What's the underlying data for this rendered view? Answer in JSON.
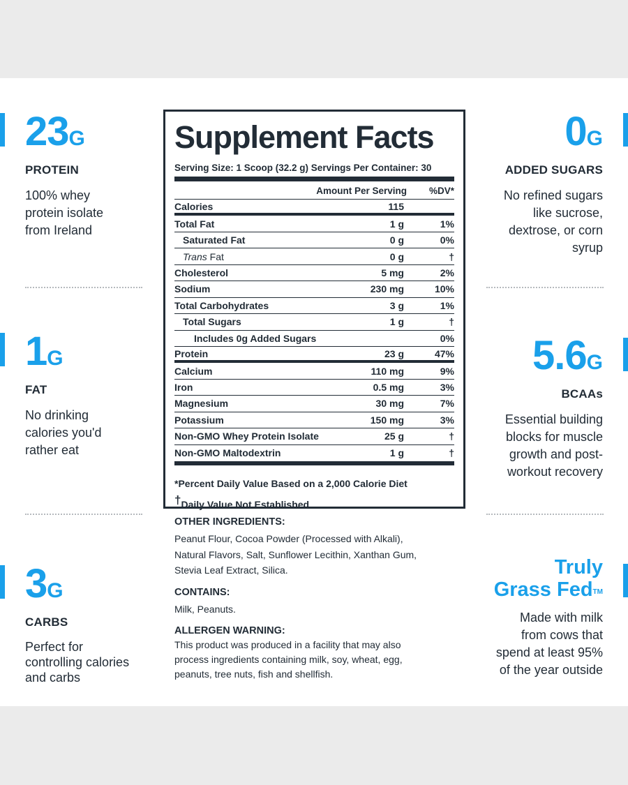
{
  "left_stats": [
    {
      "value": "23",
      "unit": "G",
      "label": "PROTEIN",
      "desc": [
        "100% whey",
        "protein isolate",
        "from Ireland"
      ]
    },
    {
      "value": "1",
      "unit": "G",
      "label": "FAT",
      "desc": [
        "No drinking",
        "calories you'd",
        "rather eat"
      ]
    },
    {
      "value": "3",
      "unit": "G",
      "label": "CARBS",
      "desc": [
        "Perfect for",
        "controlling calories",
        "and carbs"
      ]
    }
  ],
  "right_stats": [
    {
      "value": "0",
      "unit": "G",
      "label": "ADDED SUGARS",
      "desc": [
        "No refined sugars",
        "like sucrose,",
        "dextrose, or corn",
        "syrup"
      ]
    },
    {
      "value": "5.6",
      "unit": "G",
      "label": "BCAAs",
      "desc": [
        "Essential building",
        "blocks for muscle",
        "growth and post-",
        "workout recovery"
      ]
    },
    {
      "title_line1": "Truly",
      "title_line2": "Grass Fed",
      "tm": "TM",
      "desc": [
        "Made with milk",
        "from cows that",
        "spend at least 95%",
        "of the year outside"
      ]
    }
  ],
  "facts": {
    "title": "Supplement Facts",
    "serving": "Serving Size: 1 Scoop (32.2 g)  Servings Per Container: 30",
    "col_amount": "Amount Per Serving",
    "col_dv": "%DV*",
    "rows": [
      {
        "name": "Calories",
        "amount": "115",
        "dv": ""
      },
      {
        "name": "Total Fat",
        "amount": "1 g",
        "dv": "1%"
      },
      {
        "name": "Saturated Fat",
        "amount": "0 g",
        "dv": "0%"
      },
      {
        "name_italic": "Trans",
        "name": " Fat",
        "amount": "0 g",
        "dv": "†"
      },
      {
        "name": "Cholesterol",
        "amount": "5 mg",
        "dv": "2%"
      },
      {
        "name": "Sodium",
        "amount": "230 mg",
        "dv": "10%"
      },
      {
        "name": "Total Carbohydrates",
        "amount": "3 g",
        "dv": "1%"
      },
      {
        "name": "Total Sugars",
        "amount": "1 g",
        "dv": "†"
      },
      {
        "name": "Includes 0g Added Sugars",
        "amount": "",
        "dv": "0%"
      },
      {
        "name": "Protein",
        "amount": "23 g",
        "dv": "47%"
      },
      {
        "name": "Calcium",
        "amount": "110 mg",
        "dv": "9%"
      },
      {
        "name": "Iron",
        "amount": "0.5 mg",
        "dv": "3%"
      },
      {
        "name": "Magnesium",
        "amount": "30 mg",
        "dv": "7%"
      },
      {
        "name": "Potassium",
        "amount": "150 mg",
        "dv": "3%"
      },
      {
        "name": "Non-GMO Whey Protein Isolate",
        "amount": "25 g",
        "dv": "†"
      },
      {
        "name": "Non-GMO Maltodextrin",
        "amount": "1 g",
        "dv": "†"
      }
    ],
    "footnote1": "*Percent Daily Value Based on a 2,000 Calorie Diet",
    "footnote2_mark": "†",
    "footnote2": "Daily Value Not Established"
  },
  "ingredients": {
    "other_heading": "OTHER INGREDIENTS:",
    "other_lines": [
      "Peanut Flour, Cocoa Powder (Processed with Alkali),",
      "Natural Flavors, Salt, Sunflower Lecithin, Xanthan Gum,",
      "Stevia Leaf Extract, Silica."
    ],
    "contains_heading": "CONTAINS:",
    "contains_text": "Milk, Peanuts.",
    "allergen_heading": "ALLERGEN WARNING:",
    "allergen_lines": [
      "This product was produced in a facility that may also",
      "process ingredients containing milk, soy, wheat, egg,",
      "peanuts, tree nuts, fish and shellfish."
    ]
  },
  "colors": {
    "accent": "#1aa0ea",
    "text": "#222c36",
    "band": "#ebebeb"
  }
}
